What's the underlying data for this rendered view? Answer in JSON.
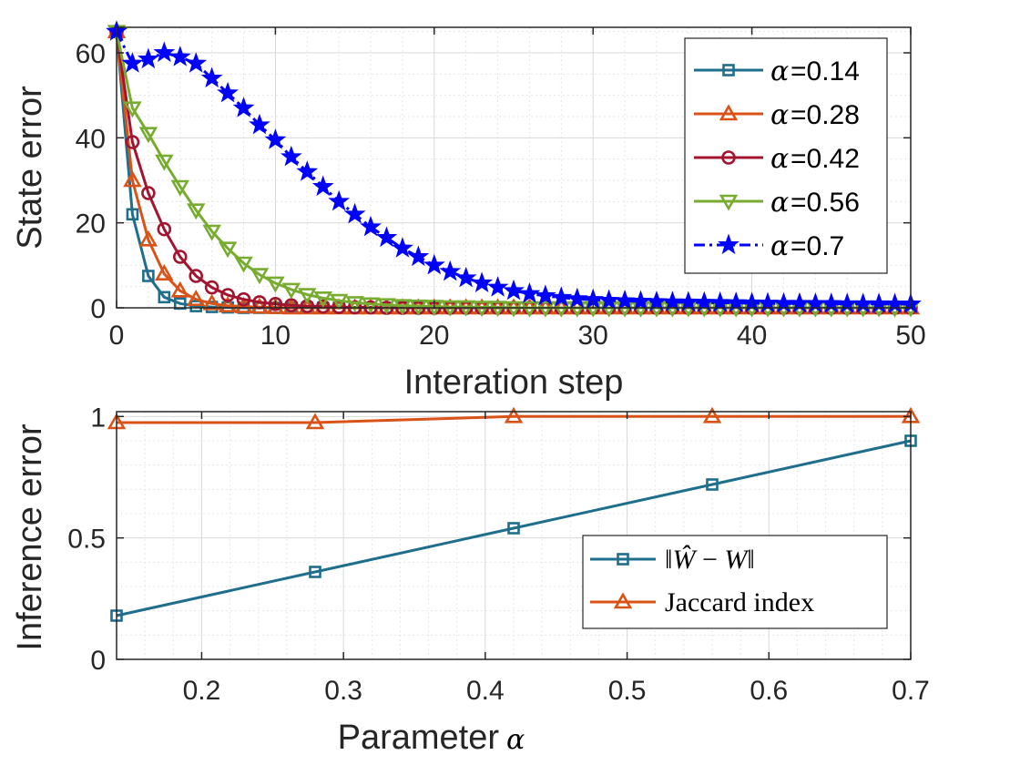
{
  "chart_data": [
    {
      "type": "line",
      "xlabel": "Interation step",
      "ylabel": "State error",
      "xlim": [
        0,
        50
      ],
      "ylim": [
        0,
        66
      ],
      "xticks": [
        "0",
        "10",
        "20",
        "30",
        "40",
        "50"
      ],
      "yticks": [
        "0",
        "20",
        "40",
        "60"
      ],
      "grid": true,
      "legend_position": "top-right",
      "alpha_symbol": "α",
      "series": [
        {
          "name": "=0.14",
          "color": "#1f6e8c",
          "marker": "square",
          "dash": "solid",
          "values": [
            65,
            22,
            7.5,
            2.5,
            1,
            0.4,
            0.2,
            0.1,
            0,
            0,
            0,
            0,
            0,
            0,
            0,
            0,
            0,
            0,
            0,
            0,
            0,
            0,
            0,
            0,
            0,
            0,
            0,
            0,
            0,
            0,
            0,
            0,
            0,
            0,
            0,
            0,
            0,
            0,
            0,
            0,
            0,
            0,
            0,
            0,
            0,
            0,
            0,
            0,
            0,
            0,
            0
          ]
        },
        {
          "name": "=0.28",
          "color": "#d95319",
          "marker": "triangle-up",
          "dash": "solid",
          "values": [
            65,
            30,
            16,
            8,
            4,
            2,
            1,
            0.5,
            0.3,
            0.2,
            0.1,
            0,
            0,
            0,
            0,
            0,
            0,
            0,
            0,
            0,
            0,
            0,
            0,
            0,
            0,
            0,
            0,
            0,
            0,
            0,
            0,
            0,
            0,
            0,
            0,
            0,
            0,
            0,
            0,
            0,
            0,
            0,
            0,
            0,
            0,
            0,
            0,
            0,
            0,
            0,
            0
          ]
        },
        {
          "name": "=0.42",
          "color": "#a2142f",
          "marker": "circle",
          "dash": "solid",
          "values": [
            65,
            39,
            27,
            18.5,
            12,
            7.5,
            4.8,
            3,
            2,
            1.3,
            0.9,
            0.6,
            0.4,
            0.3,
            0.2,
            0.1,
            0.1,
            0,
            0,
            0,
            0,
            0,
            0,
            0,
            0,
            0,
            0,
            0,
            0,
            0,
            0,
            0,
            0,
            0,
            0,
            0,
            0,
            0,
            0,
            0,
            0,
            0,
            0,
            0,
            0,
            0,
            0,
            0,
            0,
            0,
            0
          ]
        },
        {
          "name": "=0.56",
          "color": "#77ac30",
          "marker": "triangle-down",
          "dash": "solid",
          "values": [
            65,
            47,
            41,
            34.5,
            28.5,
            23,
            18,
            14,
            10.5,
            7.8,
            5.8,
            4.3,
            3.1,
            2.3,
            1.7,
            1.2,
            0.9,
            0.7,
            0.5,
            0.4,
            0.3,
            0.2,
            0.2,
            0.1,
            0.1,
            0,
            0,
            0,
            0,
            0,
            0,
            0,
            0,
            0,
            0,
            0,
            0,
            0,
            0,
            0,
            0,
            0,
            0,
            0,
            0,
            0,
            0,
            0,
            0,
            0,
            0
          ]
        },
        {
          "name": "=0.7",
          "color": "#0000ff",
          "marker": "star",
          "dash": "dashdot",
          "values": [
            65,
            57.5,
            58.5,
            60,
            59,
            57.5,
            54,
            50.5,
            47,
            43,
            39.5,
            35.5,
            32,
            28.5,
            25,
            22,
            19,
            16.5,
            14,
            12,
            10,
            8.5,
            7,
            5.8,
            4.8,
            4,
            3.3,
            2.8,
            2.4,
            2.1,
            1.9,
            1.7,
            1.6,
            1.5,
            1.4,
            1.35,
            1.3,
            1.25,
            1.2,
            1.15,
            1.1,
            1.05,
            1.0,
            1.0,
            0.95,
            0.95,
            0.9,
            0.9,
            0.9,
            0.85,
            0.85
          ]
        }
      ]
    },
    {
      "type": "line",
      "xlabel": "Parameter",
      "xlabel_symbol": "α",
      "ylabel": "Inference error",
      "xlim": [
        0.14,
        0.7
      ],
      "ylim": [
        0,
        1.02
      ],
      "xticks": [
        "0.2",
        "0.3",
        "0.4",
        "0.5",
        "0.6",
        "0.7"
      ],
      "yticks": [
        "0",
        "0.5",
        "1"
      ],
      "grid": true,
      "legend_position": "bottom-right",
      "x": [
        0.14,
        0.28,
        0.42,
        0.56,
        0.7
      ],
      "series": [
        {
          "name": "‖Ŵ − W‖",
          "name_parts": [
            "‖",
            "Ŵ",
            " − ",
            "W",
            "‖"
          ],
          "color": "#1f6e8c",
          "marker": "square",
          "values": [
            0.18,
            0.36,
            0.54,
            0.72,
            0.9
          ]
        },
        {
          "name": "Jaccard index",
          "color": "#d95319",
          "marker": "triangle-up",
          "values": [
            0.975,
            0.975,
            1.0,
            1.0,
            1.0
          ]
        }
      ]
    }
  ]
}
